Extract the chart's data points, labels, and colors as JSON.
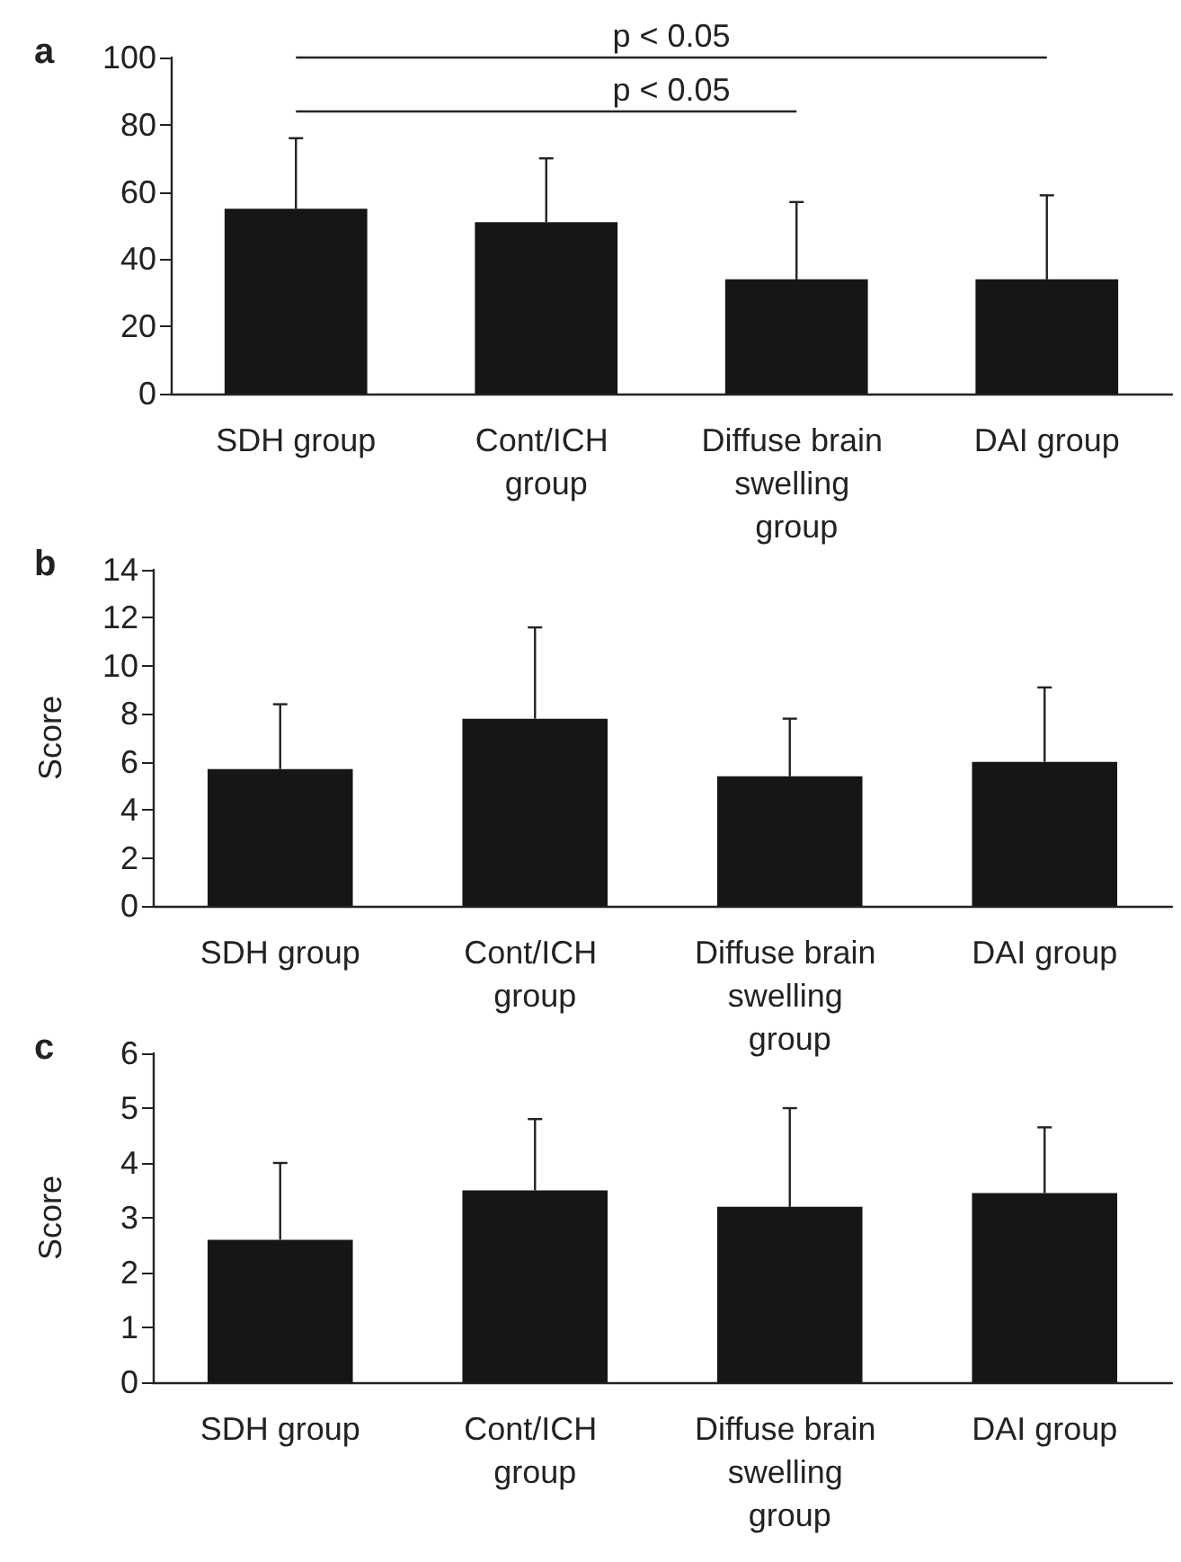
{
  "chart_data": [
    {
      "type": "bar",
      "title": "a",
      "categories": [
        "SDH group",
        "Cont/ICH group",
        "Diffuse brain swelling group",
        "DAI group"
      ],
      "series": [
        {
          "color": "#161616",
          "values": [
            55,
            51,
            34,
            34
          ],
          "errors": [
            21,
            19,
            23,
            25
          ]
        }
      ],
      "ylim": [
        0,
        100
      ],
      "yticks": [
        0,
        20,
        40,
        60,
        80,
        100
      ],
      "annotations": [
        "p < 0.05",
        "p < 0.05"
      ]
    },
    {
      "type": "bar",
      "title": "b",
      "ylabel": "Score",
      "categories": [
        "SDH group",
        "Cont/ICH group",
        "Diffuse brain swelling group",
        "DAI group"
      ],
      "series": [
        {
          "color": "#161616",
          "values": [
            5.7,
            7.8,
            5.4,
            6.0
          ],
          "errors": [
            2.7,
            3.8,
            2.4,
            3.1
          ]
        }
      ],
      "ylim": [
        0,
        14
      ],
      "yticks": [
        0,
        2,
        4,
        6,
        8,
        10,
        12,
        14
      ]
    },
    {
      "type": "bar",
      "title": "c",
      "ylabel": "Score",
      "categories": [
        "SDH group",
        "Cont/ICH group",
        "Diffuse brain swelling group",
        "DAI group"
      ],
      "series": [
        {
          "color": "#161616",
          "values": [
            2.6,
            3.5,
            3.2,
            3.45
          ],
          "errors": [
            1.4,
            1.3,
            1.8,
            1.2
          ]
        }
      ],
      "ylim": [
        0,
        6
      ],
      "yticks": [
        0,
        1,
        2,
        3,
        4,
        5,
        6
      ]
    }
  ]
}
